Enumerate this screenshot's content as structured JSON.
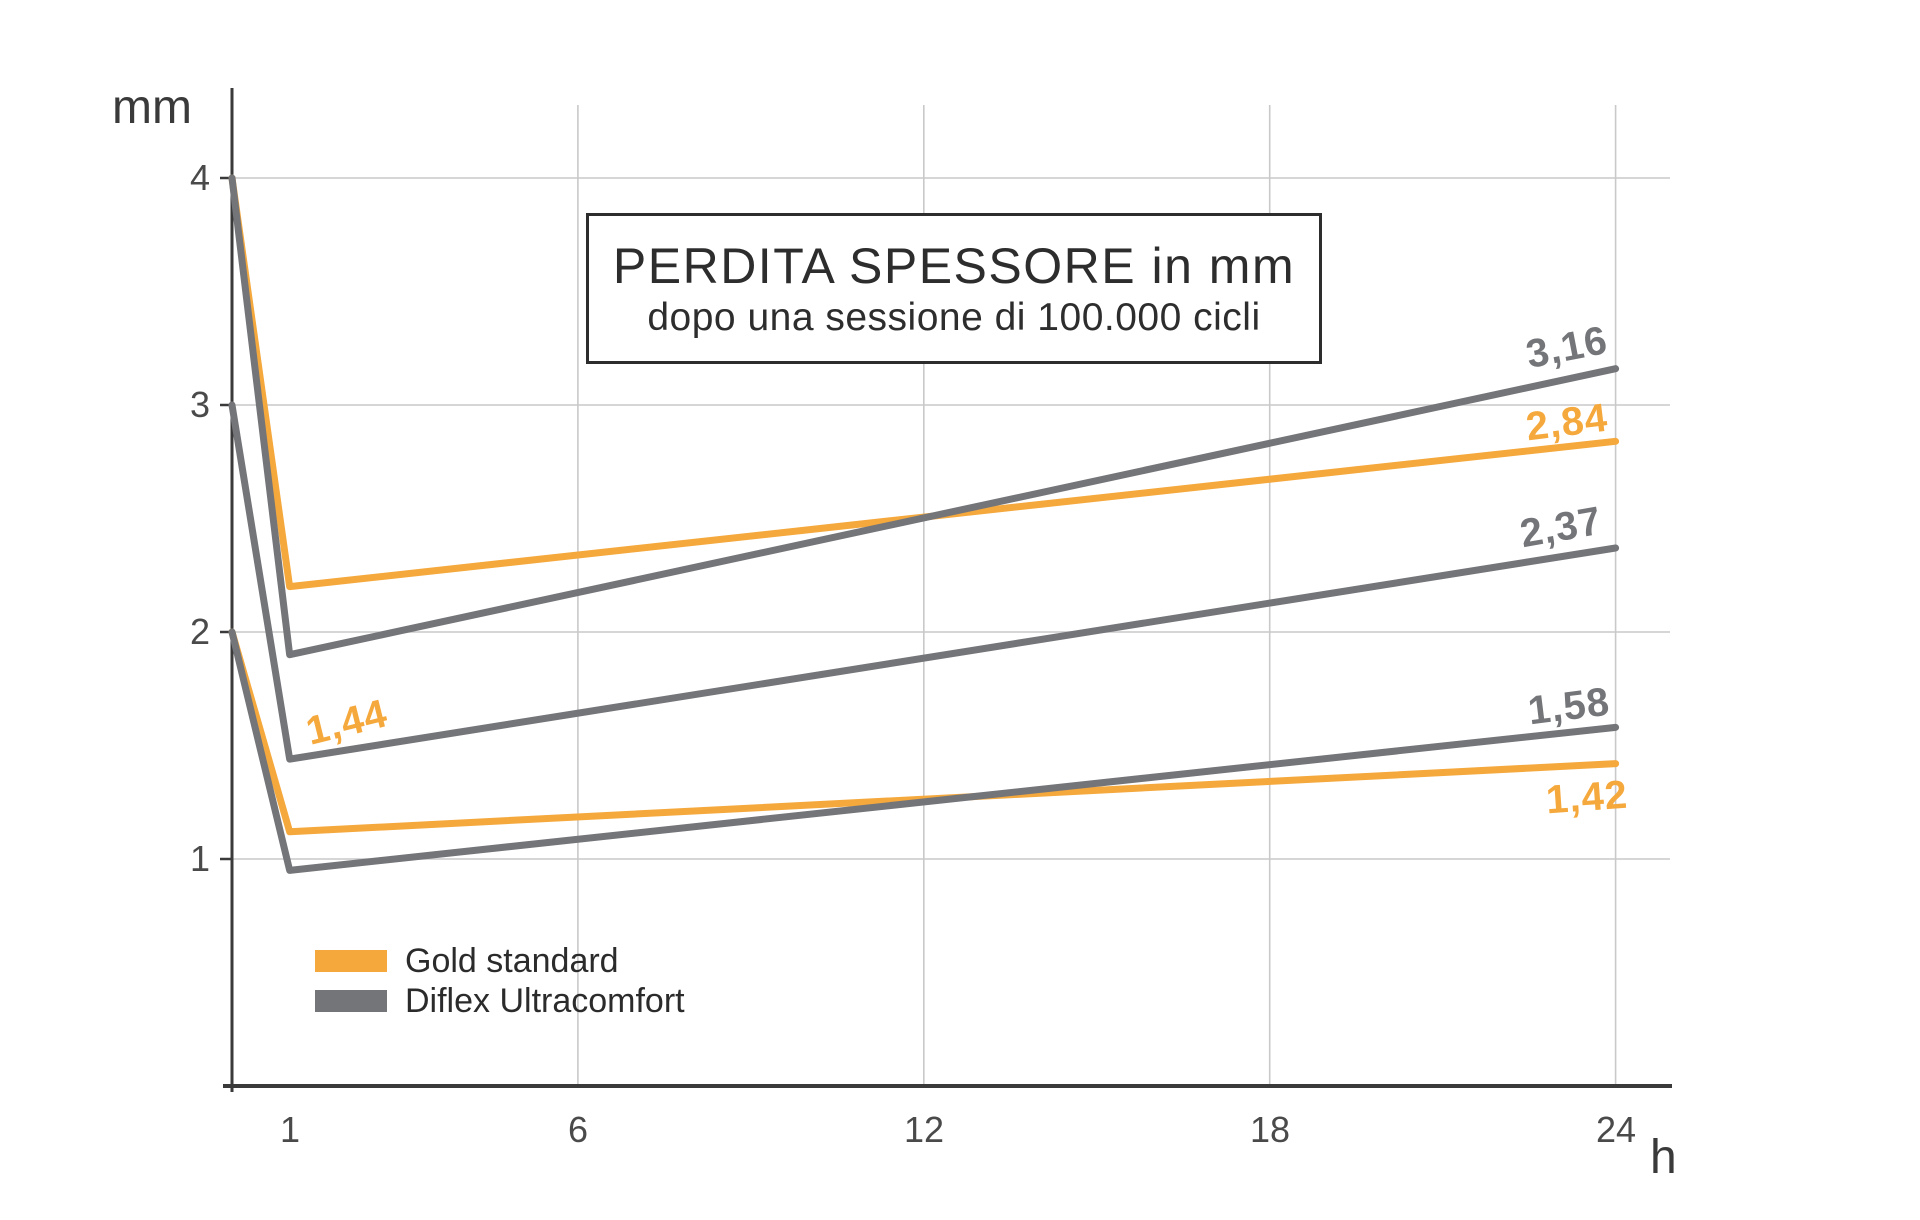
{
  "colors": {
    "orange": "#F5A83C",
    "gray": "#747579",
    "axis": "#3A3A3B",
    "grid": "#C9C9C9",
    "text_dark": "#2D2D2E",
    "tick_text": "#4A4A4B"
  },
  "title_box": {
    "line1": "PERDITA SPESSORE in mm",
    "line2": "dopo una sessione di 100.000 cicli"
  },
  "axes": {
    "y_unit": "mm",
    "x_unit": "h",
    "y_ticks": [
      "4",
      "3",
      "2",
      "1"
    ],
    "x_ticks": [
      "1",
      "6",
      "12",
      "18",
      "24"
    ]
  },
  "legend": [
    {
      "label": "Gold standard",
      "color": "#F5A83C"
    },
    {
      "label": "Diflex Ultracomfort",
      "color": "#747579"
    }
  ],
  "chart_data": {
    "type": "line",
    "title": "PERDITA SPESSORE in mm",
    "subtitle": "dopo una sessione di 100.000 cicli",
    "xlabel": "h",
    "ylabel": "mm",
    "xlim": [
      0,
      24
    ],
    "ylim": [
      0,
      4.4
    ],
    "x_ticks": [
      1,
      6,
      12,
      18,
      24
    ],
    "y_ticks": [
      1,
      2,
      3,
      4
    ],
    "grid_x": [
      6,
      12,
      18,
      24
    ],
    "grid_y": [
      1,
      2,
      3,
      4
    ],
    "grid": true,
    "legend_position": "bottom-left",
    "series": [
      {
        "name": "Gold standard",
        "color": "#F5A83C",
        "x": [
          0,
          1,
          24
        ],
        "y": [
          4.0,
          2.2,
          2.84
        ]
      },
      {
        "name": "Gold standard",
        "color": "#F5A83C",
        "x": [
          0,
          1,
          24
        ],
        "y": [
          2.0,
          1.12,
          1.42
        ]
      },
      {
        "name": "Diflex Ultracomfort",
        "color": "#747579",
        "x": [
          0,
          1,
          24
        ],
        "y": [
          4.0,
          1.9,
          3.16
        ]
      },
      {
        "name": "Diflex Ultracomfort",
        "color": "#747579",
        "x": [
          0,
          1,
          24
        ],
        "y": [
          3.0,
          1.44,
          2.37
        ]
      },
      {
        "name": "Diflex Ultracomfort",
        "color": "#747579",
        "x": [
          0,
          1,
          24
        ],
        "y": [
          2.0,
          0.95,
          1.58
        ]
      }
    ],
    "annotations": [
      {
        "text": "3,16",
        "series": "Diflex Ultracomfort",
        "color": "#747579",
        "x": 23.15,
        "y": 3.25,
        "angle": -11
      },
      {
        "text": "2,84",
        "series": "Gold standard",
        "color": "#F5A83C",
        "x": 23.15,
        "y": 2.92,
        "angle": -7
      },
      {
        "text": "2,37",
        "series": "Diflex Ultracomfort",
        "color": "#747579",
        "x": 23.05,
        "y": 2.46,
        "angle": -10
      },
      {
        "text": "1,58",
        "series": "Diflex Ultracomfort",
        "color": "#747579",
        "x": 23.2,
        "y": 1.67,
        "angle": -7
      },
      {
        "text": "1,42",
        "series": "Gold standard",
        "color": "#F5A83C",
        "x": 23.5,
        "y": 1.27,
        "angle": -4
      },
      {
        "text": "1,44",
        "series": "Diflex Ultracomfort",
        "color": "#F5A83C",
        "x": 2.0,
        "y": 1.6,
        "angle": -14
      }
    ]
  }
}
